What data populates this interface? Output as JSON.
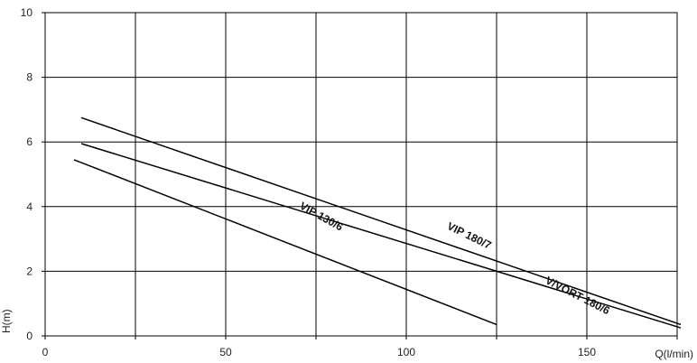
{
  "chart_data": {
    "type": "line",
    "title": "",
    "xlabel": "Q(l/min)",
    "ylabel": "H(m)",
    "xlim": [
      0,
      175
    ],
    "ylim": [
      0,
      10
    ],
    "grid": true,
    "xticks": [
      0,
      25,
      50,
      75,
      100,
      125,
      150,
      175
    ],
    "yticks": [
      0,
      2,
      4,
      6,
      8,
      10
    ],
    "xtick_labels": [
      "0",
      "50",
      "100",
      "150"
    ],
    "ytick_labels": [
      "0",
      "2",
      "4",
      "6",
      "8",
      "10"
    ],
    "series": [
      {
        "name": "VIP 130/6",
        "x": [
          8,
          125
        ],
        "y": [
          5.45,
          0.35
        ],
        "label_at": {
          "x": 76,
          "y": 3.6,
          "rotation": 29
        }
      },
      {
        "name": "V/VORT 180/6",
        "x": [
          10,
          176
        ],
        "y": [
          5.95,
          0.25
        ],
        "label_at": {
          "x": 147,
          "y": 1.15,
          "rotation": 27
        }
      },
      {
        "name": "VIP 180/7",
        "x": [
          10,
          176
        ],
        "y": [
          6.75,
          0.35
        ],
        "label_at": {
          "x": 117,
          "y": 3.0,
          "rotation": 26
        }
      }
    ]
  }
}
